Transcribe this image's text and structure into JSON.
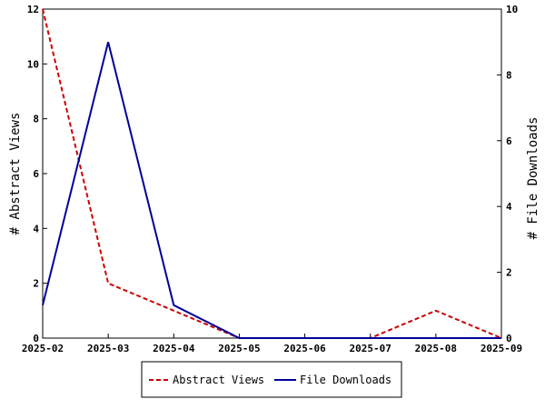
{
  "chart_data": {
    "type": "line",
    "x": [
      "2025-02",
      "2025-03",
      "2025-04",
      "2025-05",
      "2025-06",
      "2025-07",
      "2025-08",
      "2025-09"
    ],
    "series": [
      {
        "name": "Abstract Views",
        "axis": "left",
        "color": "#cc0000",
        "style": "dashed",
        "values": [
          12,
          2,
          1,
          0,
          0,
          0,
          1,
          0
        ]
      },
      {
        "name": "File Downloads",
        "axis": "right",
        "color": "#000099",
        "style": "solid",
        "values": [
          1,
          9,
          1,
          0,
          0,
          0,
          0,
          0
        ]
      }
    ],
    "ylabel_left": "# Abstract Views",
    "ylabel_right": "# File Downloads",
    "ylim_left": [
      0,
      12
    ],
    "yticks_left": [
      0,
      2,
      4,
      6,
      8,
      10,
      12
    ],
    "ylim_right": [
      0,
      10
    ],
    "yticks_right": [
      0,
      2,
      4,
      6,
      8,
      10
    ],
    "grid": false,
    "legend_position": "bottom"
  }
}
